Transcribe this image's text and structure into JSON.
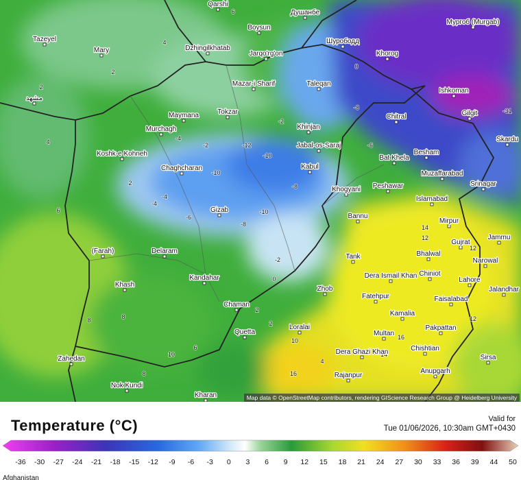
{
  "map": {
    "places": [
      "Qarshi",
      "Душанбе",
      "Boysun",
      "Tazeyel",
      "Mary",
      "Dzhingilkhatab",
      "Jarqo'rg'on",
      "Шурободд",
      "Khorog",
      "Мургоб (Murgab)",
      "Mazar-i Sharif",
      "Taleqan",
      "Ishkoman",
      "مشهد",
      "Tokzar",
      "Gilgit",
      "Chitral",
      "Maymana",
      "Murchagh",
      "Khinjan",
      "Jabal-os-Saraj",
      "Skardu",
      "Koshk-e Kohneh",
      "Bat Khela",
      "Besham",
      "Chaghcharan",
      "Kabul",
      "Muzaffarabad",
      "Khogyani",
      "Peshawar",
      "Srinagar",
      "Islamabad",
      "Gizab",
      "Bannu",
      "Mirpur",
      "Jammu",
      "Gujrat",
      "Delaram",
      "Tank",
      "Bhalwal",
      "Narowal",
      "Dera Ismail Khan",
      "Chiniot",
      "Kandahar",
      "Lahore",
      "Khash",
      "Zhob",
      "Jalandhar",
      "Fatehpur",
      "Faisalabad",
      "Chaman",
      "Kamalia",
      "Quetta",
      "Loralai",
      "Pakpattan",
      "Multan",
      "Dera Ghazi Khan",
      "Chishtian",
      "Zahedan",
      "Sirsa",
      "Anupgarh",
      "Rajanpur",
      "Nok Kundi",
      "Kharan",
      "(Farah)"
    ],
    "contour_values": [
      6,
      4,
      2,
      4,
      6,
      2,
      -2,
      -4,
      -6,
      -10,
      -12,
      -10,
      -8,
      -2,
      -4,
      -6,
      -8,
      -10,
      -4,
      -2,
      2,
      0,
      2,
      4,
      8,
      6,
      10,
      8,
      10,
      12,
      14,
      14,
      16,
      16,
      12,
      14,
      12,
      -8,
      -6,
      -31,
      0,
      8,
      2
    ]
  },
  "attribution": "Map data © OpenStreetMap contributors, rendering GIScience Research Group @ Heidelberg University",
  "legend": {
    "title": "Temperature (°C)",
    "ticks": [
      -36,
      -30,
      -27,
      -24,
      -21,
      -18,
      -15,
      -12,
      -9,
      -6,
      -3,
      0,
      3,
      6,
      9,
      12,
      15,
      18,
      21,
      24,
      27,
      30,
      33,
      36,
      39,
      44,
      50
    ]
  },
  "valid": {
    "label": "Valid for",
    "time": "Tue 01/06/2026, 10:30am GMT+0430"
  },
  "footer": {
    "region": "Afghanistan"
  }
}
